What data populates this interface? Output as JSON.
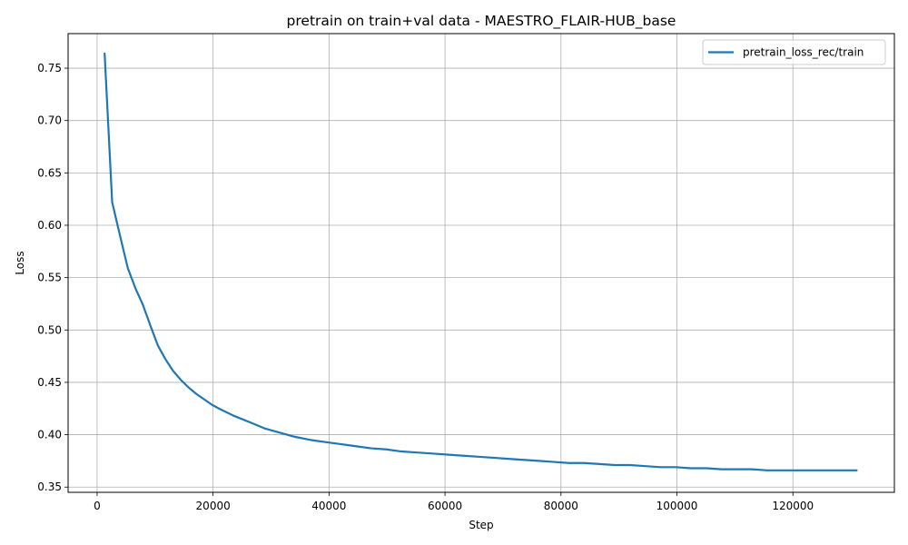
{
  "chart_data": {
    "type": "line",
    "title": "pretrain on train+val data - MAESTRO_FLAIR-HUB_base",
    "xlabel": "Step",
    "ylabel": "Loss",
    "xlim": [
      -5000,
      137500
    ],
    "ylim": [
      0.345,
      0.783
    ],
    "grid": true,
    "legend_position": "top-right",
    "x_ticks": [
      0,
      20000,
      40000,
      60000,
      80000,
      100000,
      120000
    ],
    "x_tick_labels": [
      "0",
      "20000",
      "40000",
      "60000",
      "80000",
      "100000",
      "120000"
    ],
    "y_ticks": [
      0.35,
      0.4,
      0.45,
      0.5,
      0.55,
      0.6,
      0.65,
      0.7,
      0.75
    ],
    "y_tick_labels": [
      "0.35",
      "0.40",
      "0.45",
      "0.50",
      "0.55",
      "0.60",
      "0.65",
      "0.70",
      "0.75"
    ],
    "series": [
      {
        "name": "pretrain_loss_rec/train",
        "color": "#1f77b4",
        "x": [
          1300,
          2600,
          4000,
          5300,
          6600,
          7900,
          9200,
          10500,
          11800,
          13100,
          14500,
          15800,
          17100,
          18400,
          19700,
          21000,
          23600,
          26300,
          28900,
          31500,
          34100,
          36800,
          39400,
          42000,
          44600,
          47300,
          49900,
          52500,
          55200,
          57800,
          60400,
          63000,
          65700,
          68300,
          70900,
          73500,
          76200,
          78800,
          81400,
          84000,
          86700,
          89300,
          91900,
          94600,
          97200,
          99800,
          102400,
          105100,
          107700,
          110300,
          112900,
          115600,
          118200,
          120800,
          123400,
          126100,
          128700,
          131000
        ],
        "y": [
          0.764,
          0.622,
          0.589,
          0.559,
          0.54,
          0.524,
          0.504,
          0.485,
          0.472,
          0.461,
          0.452,
          0.445,
          0.439,
          0.434,
          0.429,
          0.425,
          0.418,
          0.412,
          0.406,
          0.402,
          0.398,
          0.395,
          0.393,
          0.391,
          0.389,
          0.387,
          0.386,
          0.384,
          0.383,
          0.382,
          0.381,
          0.38,
          0.379,
          0.378,
          0.377,
          0.376,
          0.375,
          0.374,
          0.373,
          0.373,
          0.372,
          0.371,
          0.371,
          0.37,
          0.369,
          0.369,
          0.368,
          0.368,
          0.367,
          0.367,
          0.367,
          0.366,
          0.366,
          0.366,
          0.366,
          0.366,
          0.366,
          0.366
        ]
      }
    ]
  }
}
